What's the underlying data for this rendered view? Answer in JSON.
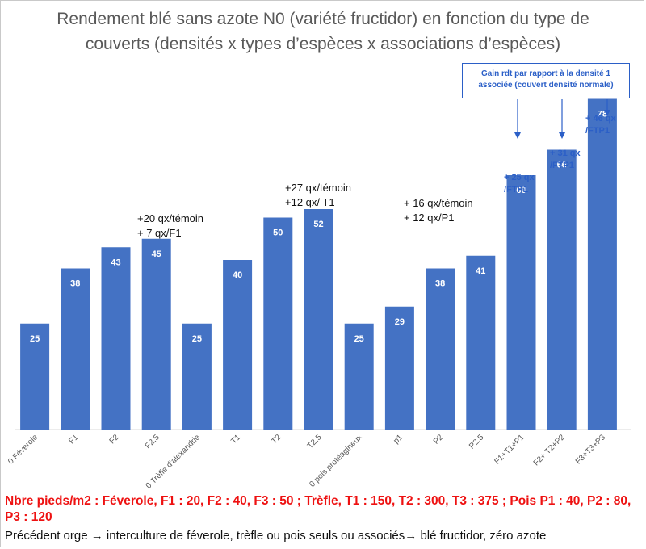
{
  "title": "Rendement blé sans azote N0 (variété fructidor) en fonction du type de couverts (densités x types d’espèces x associations d’espèces)",
  "chart_data": {
    "type": "bar",
    "categories": [
      "0 Féverole",
      "F1",
      "F2",
      "F2,5",
      "0 Trèfle d'alexandrie",
      "T1",
      "T2",
      "T2,5",
      "0 pois protéagineux",
      "p1",
      "P2",
      "P2,5",
      "F1+T1+P1",
      "F2+ T2+P2",
      "F3+T3+P3"
    ],
    "values": [
      25,
      38,
      43,
      45,
      25,
      40,
      50,
      52,
      25,
      29,
      38,
      41,
      60,
      66,
      78
    ],
    "ylim": [
      0,
      80
    ],
    "bar_color": "#4472c4",
    "grid": false,
    "legend": "none"
  },
  "annotations": {
    "fev_line1": "+20 qx/témoin",
    "fev_line2": "+ 7 qx/F1",
    "tre_line1": "+27 qx/témoin",
    "tre_line2": "+12 qx/ T1",
    "pois_line1": "+ 16 qx/témoin",
    "pois_line2": "+ 12 qx/P1",
    "gain1_line1": "+ 25 qx",
    "gain1_line2": "/FTP1",
    "gain2_line1": "+ 31 qx",
    "gain2_line2": "/FTP1",
    "gain3_line1": "+ 46 qx",
    "gain3_line2": "/FTP1",
    "gain_box_line1": "Gain rdt par rapport à la densité 1",
    "gain_box_line2": "associée  (couvert densité normale)"
  },
  "notes": {
    "red": "Nbre pieds/m2 : Féverole, F1 : 20, F2 : 40, F3 : 50 ; Trèfle, T1 : 150, T2 : 300, T3 : 375 ; Pois P1 : 40, P2 : 80, P3 : 120",
    "black": "Précédent orge → interculture de féverole, trèfle ou pois seuls ou associés→ blé fructidor, zéro azote"
  }
}
